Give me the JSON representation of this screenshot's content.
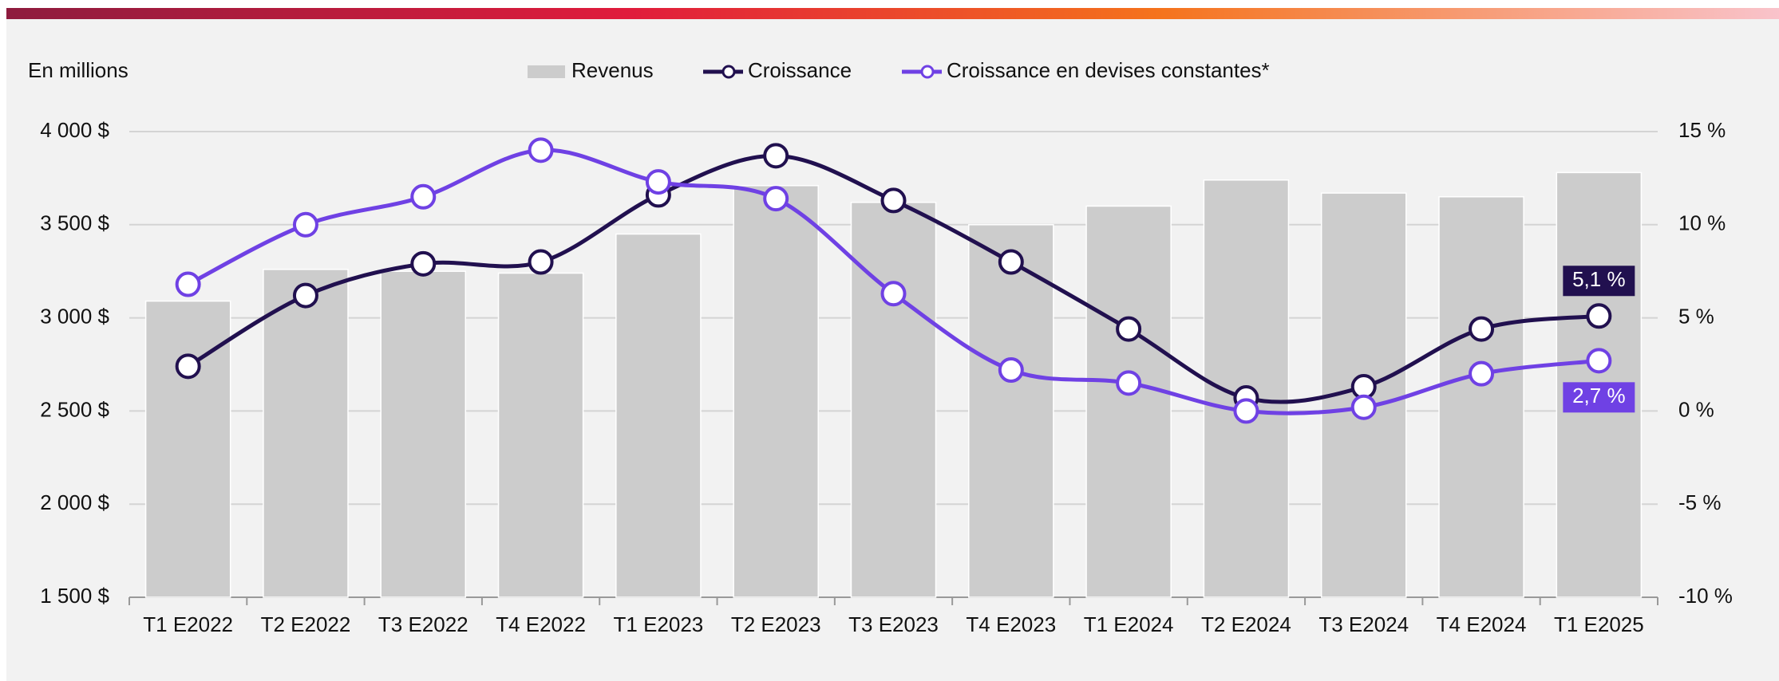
{
  "chart_data": {
    "type": "bar",
    "ylabel": "En millions",
    "categories": [
      "T1 E2022",
      "T2 E2022",
      "T3 E2022",
      "T4 E2022",
      "T1 E2023",
      "T2 E2023",
      "T3 E2023",
      "T4 E2023",
      "T1 E2024",
      "T2 E2024",
      "T3 E2024",
      "T4 E2024",
      "T1 E2025"
    ],
    "series": [
      {
        "name": "Revenus",
        "type": "bar",
        "color": "#cccccc",
        "values": [
          3090,
          3260,
          3250,
          3240,
          3450,
          3710,
          3620,
          3500,
          3600,
          3740,
          3670,
          3650,
          3780
        ]
      },
      {
        "name": "Croissance",
        "type": "line",
        "axis": "y2",
        "color": "#21104f",
        "values": [
          2.4,
          6.2,
          7.9,
          8.0,
          11.6,
          13.7,
          11.3,
          8.0,
          4.4,
          0.7,
          1.3,
          4.4,
          5.1
        ],
        "value_labels": [
          null,
          null,
          null,
          null,
          null,
          null,
          null,
          null,
          null,
          null,
          null,
          null,
          "5,1 %"
        ]
      },
      {
        "name": "Croissance en devises constantes*",
        "type": "line",
        "axis": "y2",
        "color": "#6f41e4",
        "values": [
          6.8,
          10.0,
          11.5,
          14.0,
          12.3,
          11.4,
          6.3,
          2.2,
          1.5,
          0.0,
          0.2,
          2.0,
          2.7
        ],
        "value_labels": [
          null,
          null,
          null,
          null,
          null,
          null,
          null,
          null,
          null,
          null,
          null,
          null,
          "2,7 %"
        ]
      }
    ],
    "ylim": [
      1500,
      4000
    ],
    "yticks": [
      {
        "value": 1500,
        "label": "1 500 $"
      },
      {
        "value": 2000,
        "label": "2 000 $"
      },
      {
        "value": 2500,
        "label": "2 500 $"
      },
      {
        "value": 3000,
        "label": "3 000 $"
      },
      {
        "value": 3500,
        "label": "3 500 $"
      },
      {
        "value": 4000,
        "label": "4 000 $"
      }
    ],
    "y2lim": [
      -10,
      15
    ],
    "y2ticks": [
      {
        "value": -10,
        "label": "-10 %"
      },
      {
        "value": -5,
        "label": "-5 %"
      },
      {
        "value": 0,
        "label": "0 %"
      },
      {
        "value": 5,
        "label": "5 %"
      },
      {
        "value": 10,
        "label": "10 %"
      },
      {
        "value": 15,
        "label": "15 %"
      }
    ],
    "grid": true,
    "legend": "top"
  }
}
